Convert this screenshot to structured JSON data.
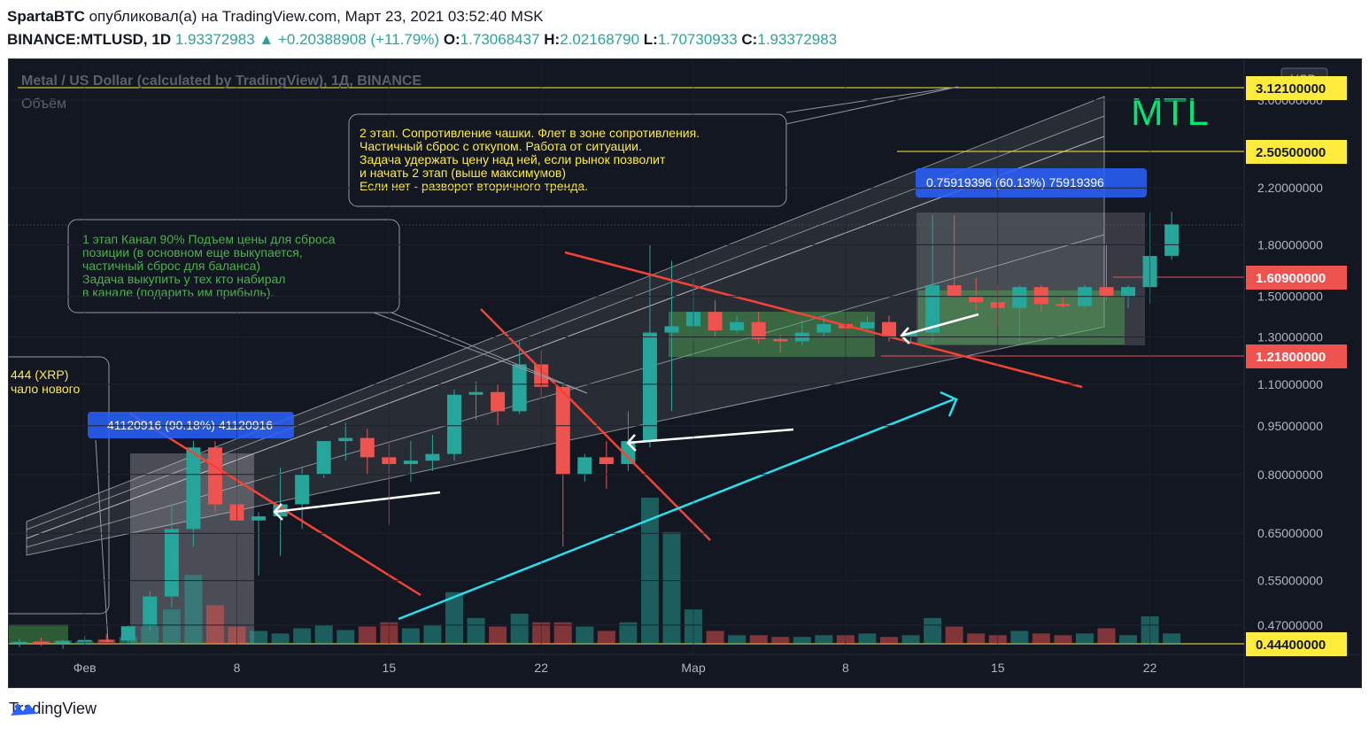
{
  "header": {
    "author": "SpartaBTC",
    "published_text": "опубликовал(а) на TradingView.com, Март 23, 2021 03:52:40 MSK",
    "symbol": "BINANCE:MTLUSD, 1D",
    "last": "1.93372983",
    "change": "+0.20388908 (+11.79%)",
    "o_label": "O:",
    "o": "1.73068437",
    "h_label": "H:",
    "h": "2.02168790",
    "l_label": "L:",
    "l": "1.70730933",
    "c_label": "C:",
    "c": "1.93372983"
  },
  "legend": {
    "title": "Metal / US Dollar (calculated by TradingView), 1Д, BINANCE",
    "volume": "Объём",
    "big_label": "MTL"
  },
  "notes": {
    "stage2": [
      "2 этап. Сопротивление чашки. Флет в зоне сопротивления.",
      "Частичный сброс с откупом. Работа от ситуации.",
      "Задача удержать цену над ней, если рынок позволит",
      "и начать 2 этап (выше максимумов)",
      "Если нет - разворот вторичного тренда."
    ],
    "stage1": [
      "1 этап Канал 90% Подъем цены для сброса",
      "позиции (в основном еще выкупается,",
      "частичный сброс для баланса)",
      "Задача выкупить у тех кто набирал",
      "в канале (подарить им прибыль)."
    ],
    "xrp": [
      "444 (XRP)",
      "чало нового"
    ],
    "measure1": "0.75919396 (60.13%) 75919396",
    "measure2": "41120916 (90.18%) 41120916"
  },
  "price_axis": {
    "currency": "USD",
    "ticks": [
      "3.00000000",
      "2.20000000",
      "1.80000000",
      "1.50000000",
      "1.30000000",
      "1.10000000",
      "0.95000000",
      "0.80000000",
      "0.65000000",
      "0.55000000",
      "0.47000000"
    ],
    "levels": [
      {
        "value": "3.12100000",
        "bg": "#ffeb3b",
        "fg": "#131722"
      },
      {
        "value": "2.50500000",
        "bg": "#ffeb3b",
        "fg": "#131722"
      },
      {
        "value": "1.60900000",
        "bg": "#ef5350",
        "fg": "#ffffff"
      },
      {
        "value": "1.21800000",
        "bg": "#ef5350",
        "fg": "#ffffff"
      },
      {
        "value": "0.44400000",
        "bg": "#ffeb3b",
        "fg": "#131722"
      }
    ]
  },
  "time_axis": [
    "Фев",
    "8",
    "15",
    "22",
    "Мар",
    "8",
    "15",
    "22"
  ],
  "footer": {
    "brand": "TradingView"
  },
  "colors": {
    "up": "#26a69a",
    "down": "#ef5350",
    "bg": "#131722",
    "grid": "#1e222d",
    "text": "#b2b5be"
  },
  "chart_data": {
    "type": "candlestick",
    "symbol": "MTLUSD",
    "timeframe": "1D",
    "scale": "log",
    "y_range": [
      0.42,
      3.3
    ],
    "dates": [
      "2021-01-29",
      "2021-01-30",
      "2021-01-31",
      "2021-02-01",
      "2021-02-02",
      "2021-02-03",
      "2021-02-04",
      "2021-02-05",
      "2021-02-06",
      "2021-02-07",
      "2021-02-08",
      "2021-02-09",
      "2021-02-10",
      "2021-02-11",
      "2021-02-12",
      "2021-02-13",
      "2021-02-14",
      "2021-02-15",
      "2021-02-16",
      "2021-02-17",
      "2021-02-18",
      "2021-02-19",
      "2021-02-20",
      "2021-02-21",
      "2021-02-22",
      "2021-02-23",
      "2021-02-24",
      "2021-02-25",
      "2021-02-26",
      "2021-02-27",
      "2021-02-28",
      "2021-03-01",
      "2021-03-02",
      "2021-03-03",
      "2021-03-04",
      "2021-03-05",
      "2021-03-06",
      "2021-03-07",
      "2021-03-08",
      "2021-03-09",
      "2021-03-10",
      "2021-03-11",
      "2021-03-12",
      "2021-03-13",
      "2021-03-14",
      "2021-03-15",
      "2021-03-16",
      "2021-03-17",
      "2021-03-18",
      "2021-03-19",
      "2021-03-20",
      "2021-03-21",
      "2021-03-22",
      "2021-03-23"
    ],
    "ohlc": [
      [
        0.441,
        0.448,
        0.435,
        0.443
      ],
      [
        0.443,
        0.45,
        0.437,
        0.441
      ],
      [
        0.441,
        0.446,
        0.432,
        0.444
      ],
      [
        0.444,
        0.452,
        0.44,
        0.446
      ],
      [
        0.446,
        0.455,
        0.442,
        0.445
      ],
      [
        0.445,
        0.47,
        0.44,
        0.468
      ],
      [
        0.468,
        0.53,
        0.46,
        0.52
      ],
      [
        0.52,
        0.72,
        0.5,
        0.66
      ],
      [
        0.66,
        0.9,
        0.62,
        0.88
      ],
      [
        0.88,
        0.9,
        0.7,
        0.72
      ],
      [
        0.72,
        0.76,
        0.65,
        0.68
      ],
      [
        0.68,
        0.7,
        0.56,
        0.69
      ],
      [
        0.69,
        0.82,
        0.6,
        0.72
      ],
      [
        0.72,
        0.82,
        0.66,
        0.8
      ],
      [
        0.8,
        0.9,
        0.79,
        0.9
      ],
      [
        0.9,
        0.96,
        0.84,
        0.91
      ],
      [
        0.91,
        0.94,
        0.8,
        0.85
      ],
      [
        0.85,
        0.9,
        0.67,
        0.83
      ],
      [
        0.83,
        0.9,
        0.78,
        0.84
      ],
      [
        0.84,
        0.92,
        0.81,
        0.86
      ],
      [
        0.86,
        1.08,
        0.84,
        1.06
      ],
      [
        1.06,
        1.11,
        0.97,
        1.07
      ],
      [
        1.07,
        1.1,
        0.95,
        1.0
      ],
      [
        1.0,
        1.28,
        0.99,
        1.18
      ],
      [
        1.18,
        1.24,
        1.05,
        1.09
      ],
      [
        1.09,
        1.1,
        0.62,
        0.8
      ],
      [
        0.8,
        0.86,
        0.78,
        0.85
      ],
      [
        0.85,
        0.9,
        0.76,
        0.83
      ],
      [
        0.83,
        1.0,
        0.81,
        0.9
      ],
      [
        0.9,
        1.8,
        0.88,
        1.32
      ],
      [
        1.32,
        1.7,
        1.0,
        1.35
      ],
      [
        1.35,
        1.6,
        1.28,
        1.42
      ],
      [
        1.42,
        1.48,
        1.3,
        1.33
      ],
      [
        1.33,
        1.4,
        1.32,
        1.37
      ],
      [
        1.37,
        1.42,
        1.27,
        1.29
      ],
      [
        1.29,
        1.31,
        1.23,
        1.28
      ],
      [
        1.28,
        1.38,
        1.26,
        1.32
      ],
      [
        1.32,
        1.4,
        1.3,
        1.36
      ],
      [
        1.36,
        1.38,
        1.32,
        1.34
      ],
      [
        1.34,
        1.4,
        1.33,
        1.37
      ],
      [
        1.37,
        1.4,
        1.28,
        1.3
      ],
      [
        1.3,
        1.33,
        1.28,
        1.32
      ],
      [
        1.32,
        2.0,
        1.28,
        1.56
      ],
      [
        1.56,
        2.0,
        1.5,
        1.5
      ],
      [
        1.5,
        1.6,
        1.43,
        1.47
      ],
      [
        1.47,
        1.56,
        1.35,
        1.44
      ],
      [
        1.44,
        1.56,
        1.28,
        1.55
      ],
      [
        1.55,
        1.56,
        1.42,
        1.46
      ],
      [
        1.46,
        1.5,
        1.44,
        1.45
      ],
      [
        1.45,
        1.56,
        1.44,
        1.55
      ],
      [
        1.55,
        1.8,
        1.48,
        1.5
      ],
      [
        1.5,
        1.56,
        1.44,
        1.55
      ],
      [
        1.55,
        2.02,
        1.46,
        1.73
      ],
      [
        1.731,
        2.022,
        1.707,
        1.934
      ]
    ],
    "volume": [
      2,
      3,
      4,
      3,
      5,
      8,
      20,
      40,
      80,
      45,
      20,
      15,
      12,
      18,
      22,
      16,
      20,
      25,
      18,
      22,
      60,
      30,
      20,
      35,
      25,
      25,
      20,
      15,
      25,
      170,
      130,
      40,
      15,
      10,
      10,
      8,
      8,
      10,
      10,
      12,
      8,
      10,
      30,
      20,
      12,
      10,
      15,
      12,
      10,
      12,
      18,
      10,
      32,
      12
    ]
  }
}
